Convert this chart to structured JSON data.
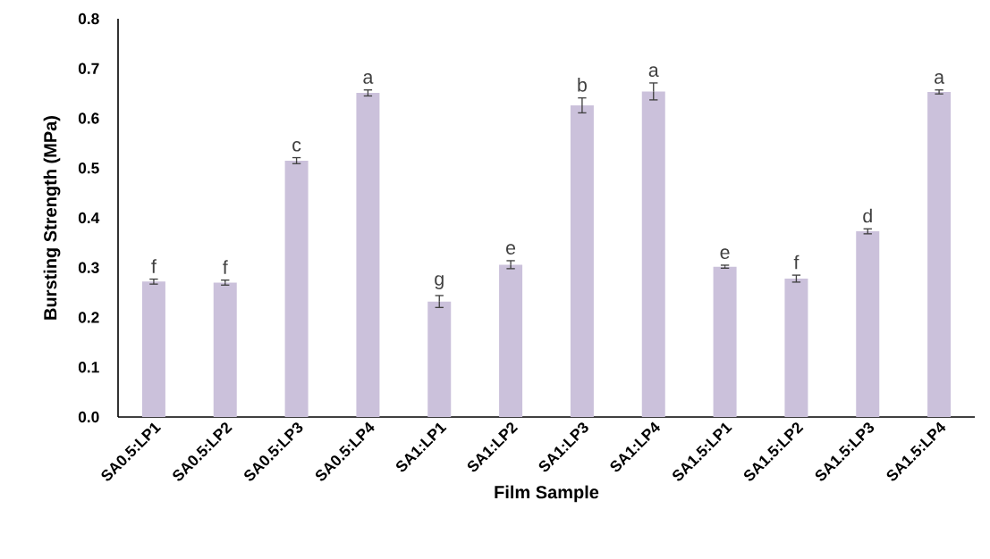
{
  "chart_data": {
    "type": "bar",
    "xlabel": "Film Sample",
    "ylabel": "Bursting Strength (MPa)",
    "categories": [
      "SA0.5:LP1",
      "SA0.5:LP2",
      "SA0.5:LP3",
      "SA0.5:LP4",
      "SA1:LP1",
      "SA1:LP2",
      "SA1:LP3",
      "SA1:LP4",
      "SA1.5:LP1",
      "SA1.5:LP2",
      "SA1.5:LP3",
      "SA1.5:LP4"
    ],
    "values": [
      0.272,
      0.27,
      0.515,
      0.651,
      0.232,
      0.306,
      0.626,
      0.654,
      0.302,
      0.278,
      0.373,
      0.653
    ],
    "errors": [
      0.005,
      0.005,
      0.006,
      0.006,
      0.012,
      0.008,
      0.015,
      0.017,
      0.003,
      0.007,
      0.005,
      0.004
    ],
    "color": "#cbc1db",
    "ylim": [
      0,
      0.8
    ],
    "yticks": [
      {
        "value": 0,
        "label": "0.0"
      },
      {
        "value": 0.1,
        "label": "0.1"
      },
      {
        "value": 0.2,
        "label": "0.2"
      },
      {
        "value": 0.3,
        "label": "0.3"
      },
      {
        "value": 0.4,
        "label": "0.4"
      },
      {
        "value": 0.5,
        "label": "0.5"
      },
      {
        "value": 0.6,
        "label": "0.6"
      },
      {
        "value": 0.7,
        "label": "0.7"
      },
      {
        "value": 0.8,
        "label": "0.8"
      }
    ],
    "annotations": [
      {
        "text": "f",
        "x": "SA0.5:LP1",
        "y": 0.272
      },
      {
        "text": "f",
        "x": "SA0.5:LP2",
        "y": 0.27
      },
      {
        "text": "c",
        "x": "SA0.5:LP3",
        "y": 0.515
      },
      {
        "text": "a",
        "x": "SA0.5:LP4",
        "y": 0.651
      },
      {
        "text": "g",
        "x": "SA1:LP1",
        "y": 0.232
      },
      {
        "text": "e",
        "x": "SA1:LP2",
        "y": 0.306
      },
      {
        "text": "b",
        "x": "SA1:LP3",
        "y": 0.626
      },
      {
        "text": "a",
        "x": "SA1:LP4",
        "y": 0.654
      },
      {
        "text": "e",
        "x": "SA1.5:LP1",
        "y": 0.302
      },
      {
        "text": "f",
        "x": "SA1.5:LP2",
        "y": 0.278
      },
      {
        "text": "d",
        "x": "SA1.5:LP3",
        "y": 0.373
      },
      {
        "text": "a",
        "x": "SA1.5:LP4",
        "y": 0.653
      }
    ]
  }
}
